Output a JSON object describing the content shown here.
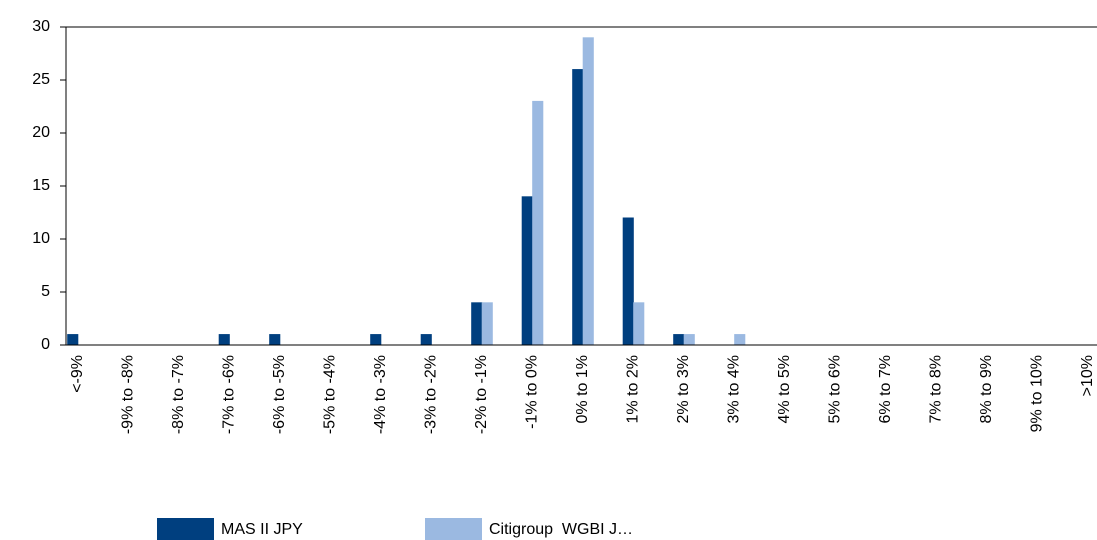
{
  "chart_data": {
    "type": "bar",
    "categories": [
      "<-9%",
      "-9% to -8%",
      "-8% to -7%",
      "-7% to -6%",
      "-6% to -5%",
      "-5% to -4%",
      "-4% to -3%",
      "-3% to -2%",
      "-2% to -1%",
      "-1% to 0%",
      "0% to 1%",
      "1% to 2%",
      "2% to 3%",
      "3% to 4%",
      "4% to 5%",
      "5% to 6%",
      "6% to 7%",
      "7% to 8%",
      "8% to 9%",
      "9% to 10%",
      ">10%"
    ],
    "series": [
      {
        "name": "MAS II JPY",
        "color": "#003f7f",
        "values": [
          1,
          0,
          0,
          1,
          1,
          0,
          1,
          1,
          4,
          14,
          26,
          12,
          1,
          0,
          0,
          0,
          0,
          0,
          0,
          0,
          0
        ]
      },
      {
        "name": "Citigroup  WGBI J…",
        "color": "#9bb9e1",
        "values": [
          0,
          0,
          0,
          0,
          0,
          0,
          0,
          0,
          4,
          23,
          29,
          4,
          1,
          1,
          0,
          0,
          0,
          0,
          0,
          0,
          0
        ]
      }
    ],
    "ylim": [
      0,
      30
    ],
    "yticks": [
      0,
      5,
      10,
      15,
      20,
      25,
      30
    ]
  }
}
